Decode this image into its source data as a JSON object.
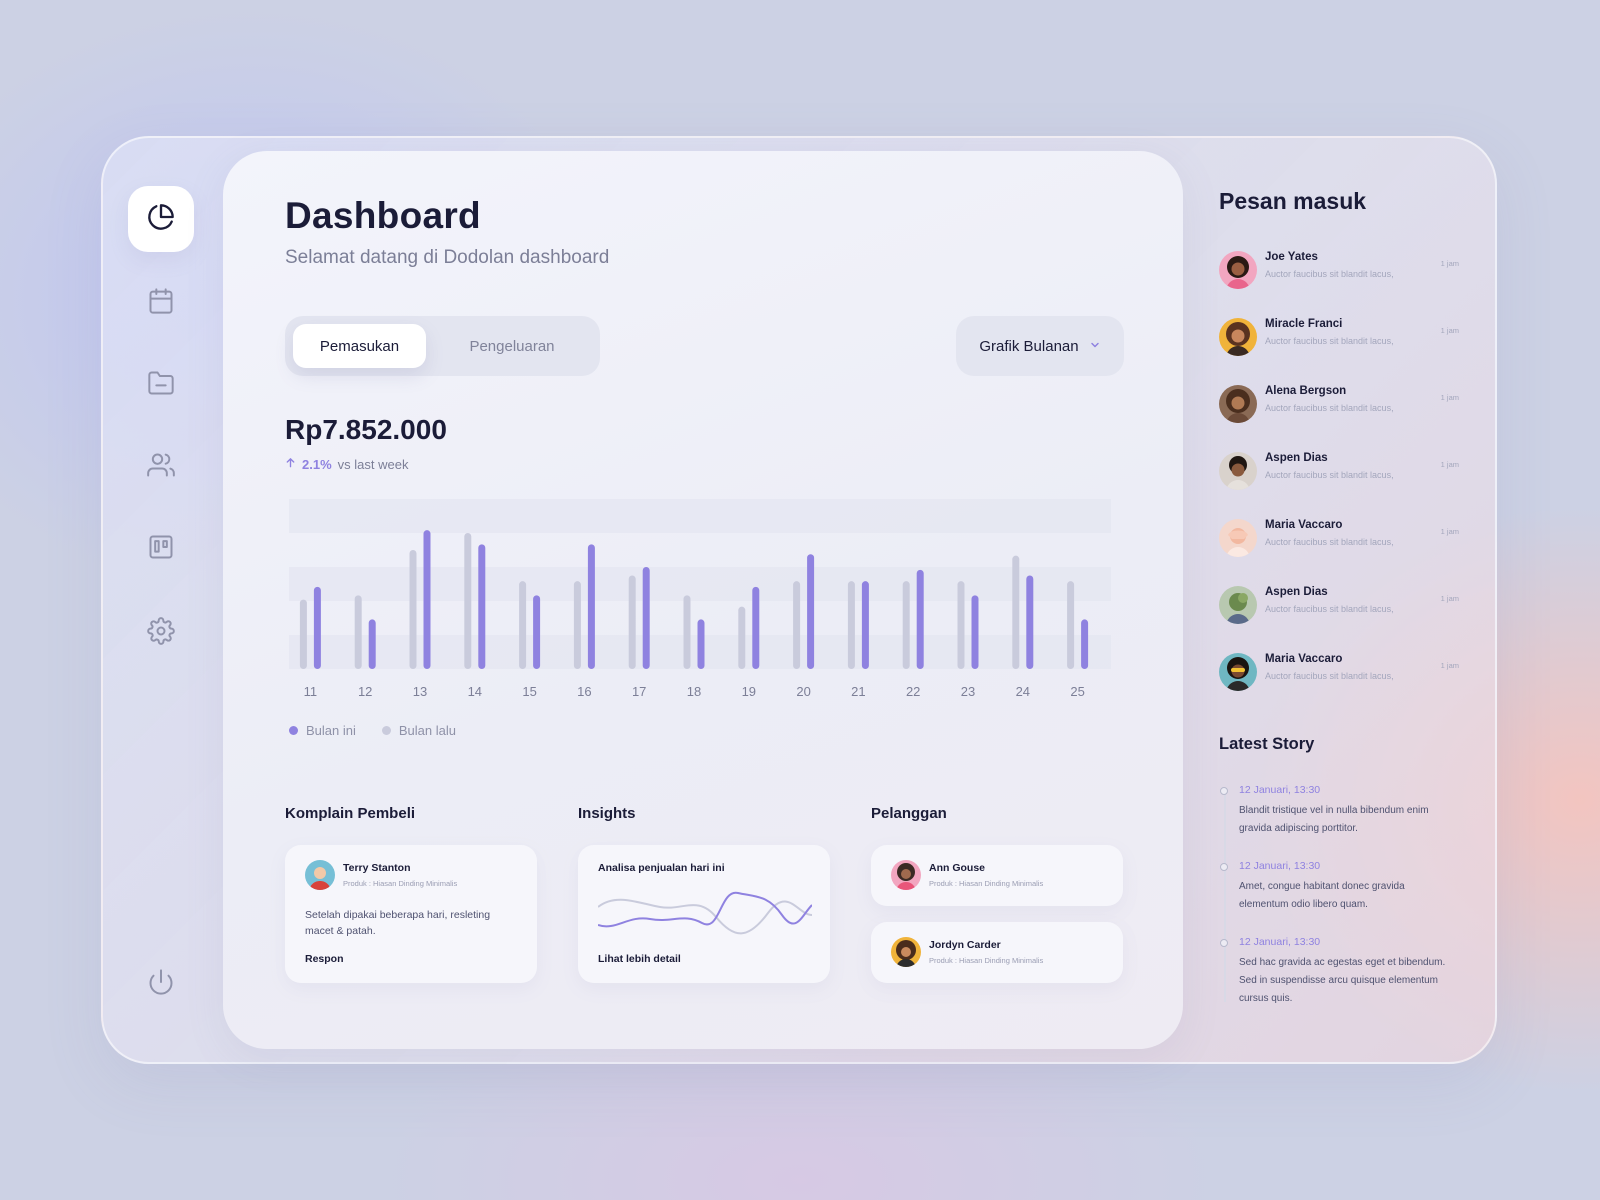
{
  "sidebar": {
    "items": [
      {
        "icon": "pie-chart-icon",
        "active": true
      },
      {
        "icon": "calendar-icon",
        "active": false
      },
      {
        "icon": "folder-icon",
        "active": false
      },
      {
        "icon": "users-icon",
        "active": false
      },
      {
        "icon": "kanban-icon",
        "active": false
      },
      {
        "icon": "gear-icon",
        "active": false
      }
    ],
    "bottom_icon": "power-icon"
  },
  "header": {
    "title": "Dashboard",
    "subtitle": "Selamat datang di Dodolan dashboard"
  },
  "tabs": {
    "income": "Pemasukan",
    "expense": "Pengeluaran",
    "active": "Pemasukan"
  },
  "dropdown": {
    "selected": "Grafik Bulanan"
  },
  "summary": {
    "amount": "Rp7.852.000",
    "growth_pct": "2.1%",
    "growth_text": "vs last week"
  },
  "chart_data": {
    "type": "bar",
    "categories": [
      "11",
      "12",
      "13",
      "14",
      "15",
      "16",
      "17",
      "18",
      "19",
      "20",
      "21",
      "22",
      "23",
      "24",
      "25"
    ],
    "series": [
      {
        "name": "Bulan ini",
        "color": "#8f82e0",
        "values": [
          58,
          35,
          98,
          88,
          52,
          88,
          72,
          35,
          58,
          81,
          62,
          70,
          52,
          66,
          35
        ]
      },
      {
        "name": "Bulan lalu",
        "color": "#c9cbdc",
        "values": [
          49,
          52,
          84,
          96,
          62,
          62,
          66,
          52,
          44,
          62,
          62,
          62,
          62,
          80,
          62
        ]
      }
    ],
    "ylim": [
      0,
      120
    ],
    "legend": "bottom-left"
  },
  "complaints": {
    "title": "Komplain Pembeli",
    "name": "Terry Stanton",
    "product": "Produk : Hiasan Dinding Minimalis",
    "message": "Setelah dipakai beberapa hari, resleting macet & patah.",
    "action": "Respon"
  },
  "insights": {
    "title": "Insights",
    "card_title": "Analisa penjualan hari ini",
    "link": "Lihat lebih detail"
  },
  "customers": {
    "title": "Pelanggan",
    "items": [
      {
        "name": "Ann Gouse",
        "product": "Produk : Hiasan Dinding Minimalis"
      },
      {
        "name": "Jordyn Carder",
        "product": "Produk : Hiasan Dinding Minimalis"
      }
    ]
  },
  "messages": {
    "title": "Pesan masuk",
    "items": [
      {
        "name": "Joe Yates",
        "text": "Auctor faucibus sit blandit lacus,",
        "time": "1 jam",
        "avatar_color": "#f2a6c0"
      },
      {
        "name": "Miracle Franci",
        "text": "Auctor faucibus sit blandit lacus,",
        "time": "1 jam",
        "avatar_color": "#f0b33a"
      },
      {
        "name": "Alena Bergson",
        "text": "Auctor faucibus sit blandit lacus,",
        "time": "1 jam",
        "avatar_color": "#8a6a55"
      },
      {
        "name": "Aspen Dias",
        "text": "Auctor faucibus sit blandit lacus,",
        "time": "1 jam",
        "avatar_color": "#d9d2cc"
      },
      {
        "name": "Maria Vaccaro",
        "text": "Auctor faucibus sit blandit lacus,",
        "time": "1 jam",
        "avatar_color": "#f4d7cc"
      },
      {
        "name": "Aspen Dias",
        "text": "Auctor faucibus sit blandit lacus,",
        "time": "1 jam",
        "avatar_color": "#b8c8b0"
      },
      {
        "name": "Maria Vaccaro",
        "text": "Auctor faucibus sit blandit lacus,",
        "time": "1 jam",
        "avatar_color": "#6fb7c2"
      }
    ]
  },
  "stories": {
    "title": "Latest Story",
    "items": [
      {
        "date": "12 Januari, 13:30",
        "text": "Blandit tristique vel in nulla bibendum enim gravida adipiscing porttitor."
      },
      {
        "date": "12 Januari, 13:30",
        "text": "Amet, congue habitant donec gravida elementum odio libero quam."
      },
      {
        "date": "12 Januari, 13:30",
        "text": "Sed hac gravida ac egestas eget et bibendum. Sed in suspendisse arcu quisque elementum cursus quis."
      }
    ]
  }
}
